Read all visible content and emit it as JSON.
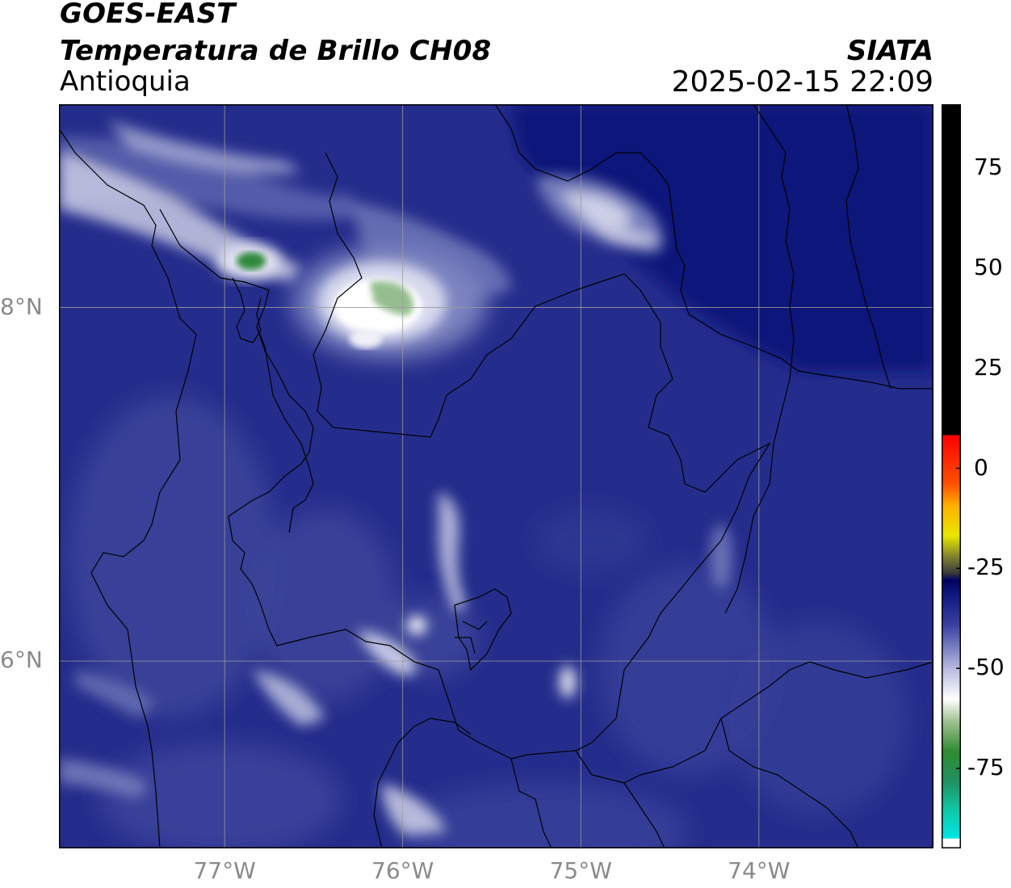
{
  "header": {
    "line1": "GOES-EAST",
    "line2": "Temperatura de Brillo CH08",
    "line3": "Antioquia",
    "organization": "SIATA",
    "timestamp": "2025-02-15 22:09"
  },
  "map": {
    "lon_range": [
      -77.93,
      -73.02
    ],
    "lat_range": [
      4.94,
      9.15
    ],
    "lat_ticks": [
      {
        "value": 8,
        "label": "8°N"
      },
      {
        "value": 6,
        "label": "6°N"
      }
    ],
    "lon_ticks": [
      {
        "value": -77,
        "label": "77°W"
      },
      {
        "value": -76,
        "label": "76°W"
      },
      {
        "value": -75,
        "label": "75°W"
      },
      {
        "value": -74,
        "label": "74°W"
      }
    ],
    "gridlines": true
  },
  "colorbar": {
    "range": [
      -95,
      91
    ],
    "ticks": [
      {
        "value": 75,
        "label": "75"
      },
      {
        "value": 50,
        "label": "50"
      },
      {
        "value": 25,
        "label": "25"
      },
      {
        "value": 0,
        "label": "0"
      },
      {
        "value": -25,
        "label": "-25"
      },
      {
        "value": -50,
        "label": "-50"
      },
      {
        "value": -75,
        "label": "-75"
      }
    ]
  }
}
